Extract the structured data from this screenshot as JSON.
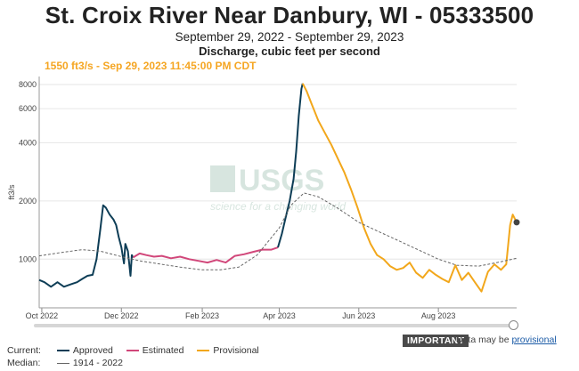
{
  "header": {
    "title": "St. Croix River Near Danbury, WI - 05333500",
    "subtitle": "September 29, 2022 - September 29, 2023",
    "units": "Discharge, cubic feet per second",
    "readout": "1550 ft3/s - Sep 29, 2023 11:45:00 PM CDT"
  },
  "watermark": {
    "logo": "USGS",
    "tagline": "science for a changing world"
  },
  "legend": {
    "current_label": "Current:",
    "median_label": "Median:",
    "approved": "Approved",
    "estimated": "Estimated",
    "provisional": "Provisional",
    "median_range": "1914 - 2022"
  },
  "notice": {
    "badge": "IMPORTANT",
    "text": "Data may be",
    "link": "provisional"
  },
  "colors": {
    "approved": "#0d3d56",
    "estimated": "#d1477a",
    "provisional": "#f2a71b",
    "median": "#666666",
    "grid": "#e6e6e6"
  },
  "chart_data": {
    "type": "line",
    "ylabel": "ft3/s",
    "y_scale": "log",
    "ylim": [
      560,
      8800
    ],
    "xlim": [
      "2022-09-29",
      "2023-09-30"
    ],
    "yticks": [
      1000,
      2000,
      4000,
      6000,
      8000
    ],
    "xticks": [
      {
        "date": "2022-10-01",
        "label": "Oct 2022"
      },
      {
        "date": "2022-12-01",
        "label": "Dec 2022"
      },
      {
        "date": "2023-02-01",
        "label": "Feb 2023"
      },
      {
        "date": "2023-04-01",
        "label": "Apr 2023"
      },
      {
        "date": "2023-06-01",
        "label": "Jun 2023"
      },
      {
        "date": "2023-08-01",
        "label": "Aug 2023"
      }
    ],
    "grid": true,
    "series": [
      {
        "name": "Approved",
        "points": [
          [
            "2022-09-29",
            780
          ],
          [
            "2022-10-03",
            760
          ],
          [
            "2022-10-08",
            720
          ],
          [
            "2022-10-13",
            760
          ],
          [
            "2022-10-18",
            720
          ],
          [
            "2022-10-23",
            740
          ],
          [
            "2022-10-28",
            760
          ],
          [
            "2022-11-01",
            790
          ],
          [
            "2022-11-05",
            820
          ],
          [
            "2022-11-09",
            830
          ],
          [
            "2022-11-12",
            1000
          ],
          [
            "2022-11-15",
            1450
          ],
          [
            "2022-11-17",
            1900
          ],
          [
            "2022-11-19",
            1850
          ],
          [
            "2022-11-22",
            1700
          ],
          [
            "2022-11-25",
            1600
          ],
          [
            "2022-11-27",
            1500
          ],
          [
            "2022-11-29",
            1300
          ],
          [
            "2022-12-01",
            1150
          ],
          [
            "2022-12-03",
            950
          ],
          [
            "2022-12-04",
            1200
          ],
          [
            "2022-12-06",
            1100
          ],
          [
            "2022-12-08",
            820
          ],
          [
            "2022-12-09",
            1050
          ],
          [
            "2022-12-10",
            1020
          ]
        ]
      },
      {
        "name": "Estimated",
        "points": [
          [
            "2022-12-10",
            1020
          ],
          [
            "2022-12-15",
            1070
          ],
          [
            "2022-12-20",
            1050
          ],
          [
            "2022-12-26",
            1030
          ],
          [
            "2023-01-01",
            1040
          ],
          [
            "2023-01-08",
            1010
          ],
          [
            "2023-01-15",
            1030
          ],
          [
            "2023-01-22",
            1000
          ],
          [
            "2023-01-29",
            980
          ],
          [
            "2023-02-05",
            960
          ],
          [
            "2023-02-12",
            990
          ],
          [
            "2023-02-19",
            960
          ],
          [
            "2023-02-26",
            1040
          ],
          [
            "2023-03-05",
            1060
          ],
          [
            "2023-03-12",
            1090
          ],
          [
            "2023-03-19",
            1120
          ],
          [
            "2023-03-26",
            1120
          ],
          [
            "2023-03-31",
            1150
          ]
        ]
      },
      {
        "name": "Approved",
        "points": [
          [
            "2023-03-31",
            1150
          ],
          [
            "2023-04-03",
            1350
          ],
          [
            "2023-04-06",
            1650
          ],
          [
            "2023-04-09",
            2000
          ],
          [
            "2023-04-12",
            2600
          ],
          [
            "2023-04-14",
            3600
          ],
          [
            "2023-04-16",
            5500
          ],
          [
            "2023-04-18",
            7600
          ],
          [
            "2023-04-19",
            8100
          ]
        ]
      },
      {
        "name": "Provisional",
        "points": [
          [
            "2023-04-19",
            8100
          ],
          [
            "2023-04-22",
            7400
          ],
          [
            "2023-04-26",
            6300
          ],
          [
            "2023-05-01",
            5200
          ],
          [
            "2023-05-06",
            4500
          ],
          [
            "2023-05-11",
            3900
          ],
          [
            "2023-05-16",
            3300
          ],
          [
            "2023-05-21",
            2800
          ],
          [
            "2023-05-26",
            2300
          ],
          [
            "2023-05-31",
            1850
          ],
          [
            "2023-06-05",
            1450
          ],
          [
            "2023-06-10",
            1200
          ],
          [
            "2023-06-15",
            1050
          ],
          [
            "2023-06-20",
            1000
          ],
          [
            "2023-06-25",
            920
          ],
          [
            "2023-06-30",
            880
          ],
          [
            "2023-07-05",
            900
          ],
          [
            "2023-07-10",
            960
          ],
          [
            "2023-07-15",
            850
          ],
          [
            "2023-07-20",
            800
          ],
          [
            "2023-07-25",
            880
          ],
          [
            "2023-07-30",
            830
          ],
          [
            "2023-08-04",
            790
          ],
          [
            "2023-08-09",
            760
          ],
          [
            "2023-08-14",
            930
          ],
          [
            "2023-08-19",
            780
          ],
          [
            "2023-08-24",
            850
          ],
          [
            "2023-08-29",
            760
          ],
          [
            "2023-09-03",
            680
          ],
          [
            "2023-09-08",
            860
          ],
          [
            "2023-09-13",
            940
          ],
          [
            "2023-09-18",
            880
          ],
          [
            "2023-09-22",
            940
          ],
          [
            "2023-09-25",
            1500
          ],
          [
            "2023-09-27",
            1700
          ],
          [
            "2023-09-30",
            1550
          ]
        ]
      },
      {
        "name": "1914 - 2022",
        "points": [
          [
            "2022-09-29",
            1040
          ],
          [
            "2022-10-15",
            1080
          ],
          [
            "2022-11-01",
            1120
          ],
          [
            "2022-11-15",
            1100
          ],
          [
            "2022-12-01",
            1030
          ],
          [
            "2022-12-15",
            980
          ],
          [
            "2023-01-01",
            940
          ],
          [
            "2023-01-15",
            910
          ],
          [
            "2023-02-01",
            880
          ],
          [
            "2023-02-15",
            880
          ],
          [
            "2023-03-01",
            910
          ],
          [
            "2023-03-15",
            1050
          ],
          [
            "2023-04-01",
            1450
          ],
          [
            "2023-04-10",
            1900
          ],
          [
            "2023-04-20",
            2200
          ],
          [
            "2023-05-01",
            2100
          ],
          [
            "2023-05-15",
            1850
          ],
          [
            "2023-06-01",
            1550
          ],
          [
            "2023-06-15",
            1400
          ],
          [
            "2023-07-01",
            1250
          ],
          [
            "2023-07-15",
            1130
          ],
          [
            "2023-08-01",
            1000
          ],
          [
            "2023-08-15",
            930
          ],
          [
            "2023-09-01",
            920
          ],
          [
            "2023-09-15",
            960
          ],
          [
            "2023-09-30",
            1010
          ]
        ]
      }
    ],
    "current_value": [
      "2023-09-30",
      1550
    ]
  }
}
